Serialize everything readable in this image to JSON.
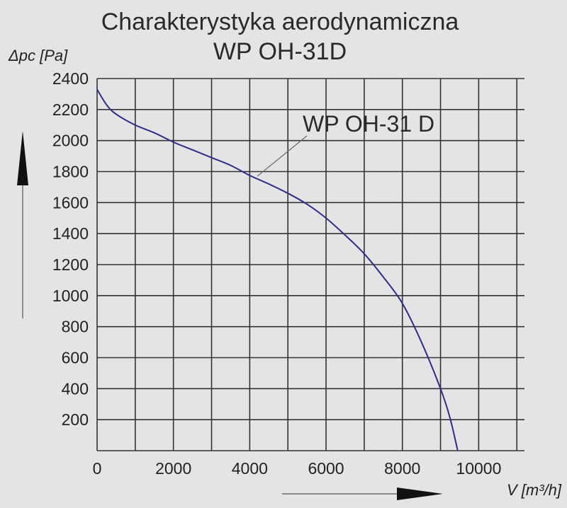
{
  "chart_data": {
    "type": "line",
    "title_lines": [
      "Charakterystyka aerodynamiczna",
      "WP OH-31D"
    ],
    "ylabel": "Δpc [Pa]",
    "xlabel": "V [m³/h]",
    "xlim": [
      0,
      11200
    ],
    "ylim": [
      0,
      2400
    ],
    "grid": true,
    "x_ticks": [
      0,
      2000,
      4000,
      6000,
      8000,
      10000
    ],
    "y_ticks": [
      200,
      400,
      600,
      800,
      1000,
      1200,
      1400,
      1600,
      1800,
      2000,
      2200,
      2400
    ],
    "series": [
      {
        "color": "#2e2d8f",
        "points": [
          [
            0,
            2330
          ],
          [
            250,
            2230
          ],
          [
            500,
            2170
          ],
          [
            1000,
            2100
          ],
          [
            1500,
            2050
          ],
          [
            2000,
            1990
          ],
          [
            2500,
            1940
          ],
          [
            3000,
            1890
          ],
          [
            3500,
            1840
          ],
          [
            4000,
            1775
          ],
          [
            4500,
            1720
          ],
          [
            5000,
            1660
          ],
          [
            5500,
            1590
          ],
          [
            6000,
            1500
          ],
          [
            6500,
            1390
          ],
          [
            7000,
            1270
          ],
          [
            7500,
            1120
          ],
          [
            8000,
            950
          ],
          [
            8500,
            700
          ],
          [
            9000,
            400
          ],
          [
            9250,
            210
          ],
          [
            9450,
            0
          ]
        ]
      }
    ],
    "annotation": {
      "text": "WP OH-31 D",
      "points_to": [
        4200,
        1770
      ]
    }
  }
}
